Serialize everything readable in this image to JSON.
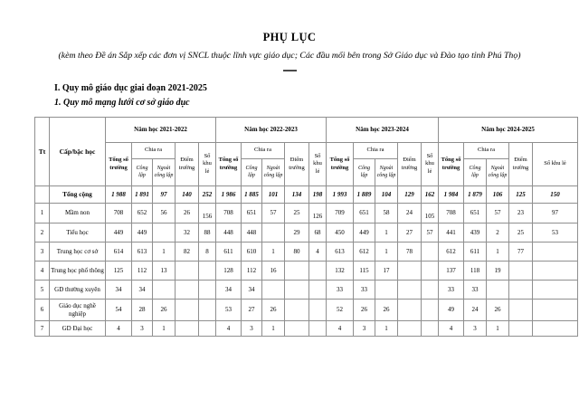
{
  "page": {
    "title": "PHỤ LỤC",
    "subtitle": "(kèm theo Đề án Sắp xếp các đơn vị SNCL thuộc lĩnh vực giáo dục; Các đầu mối bên trong Sở Giáo dục và Đào tạo tỉnh Phú Thọ)",
    "section_heading": "I. Quy mô giáo dục giai đoạn 2021-2025",
    "subsection_heading": "1. Quy mô mạng lưới cơ sở giáo dục"
  },
  "table": {
    "col_tt": "Tt",
    "col_level": "Cấp/bậc học",
    "year_groups": [
      "Năm học 2021-2022",
      "Năm học 2022-2023",
      "Năm học 2023-2024",
      "Năm học 2024-2025"
    ],
    "sub": {
      "total": "Tổng số trường",
      "chia_ra": "Chia ra",
      "cong_lap": "Công lập",
      "ngoai_cong_lap": "Ngoài công lập",
      "diem_truong": "Điểm trường",
      "so_khu_le": "Số khu lẻ"
    },
    "rows": [
      {
        "tt": "",
        "label": "Tổng cộng",
        "bold": true,
        "values": [
          "1 988",
          "1 891",
          "97",
          "140",
          "252",
          "1 986",
          "1 885",
          "101",
          "134",
          "198",
          "1 993",
          "1 889",
          "104",
          "129",
          "162",
          "1 984",
          "1 879",
          "106",
          "125",
          "150"
        ]
      },
      {
        "tt": "1",
        "label": "Mầm non",
        "values": [
          "708",
          "652",
          "56",
          "26",
          "156",
          "708",
          "651",
          "57",
          "25",
          "126",
          "709",
          "651",
          "58",
          "24",
          "105",
          "708",
          "651",
          "57",
          "23",
          "97"
        ]
      },
      {
        "tt": "2",
        "label": "Tiểu học",
        "values": [
          "449",
          "449",
          "",
          "32",
          "88",
          "448",
          "448",
          "",
          "29",
          "68",
          "450",
          "449",
          "1",
          "27",
          "57",
          "441",
          "439",
          "2",
          "25",
          "53"
        ]
      },
      {
        "tt": "3",
        "label": "Trung học cơ sở",
        "values": [
          "614",
          "613",
          "1",
          "82",
          "8",
          "611",
          "610",
          "1",
          "80",
          "4",
          "613",
          "612",
          "1",
          "78",
          "",
          "612",
          "611",
          "1",
          "77",
          ""
        ]
      },
      {
        "tt": "4",
        "label": "Trung học phổ thông",
        "values": [
          "125",
          "112",
          "13",
          "",
          "",
          "128",
          "112",
          "16",
          "",
          "",
          "132",
          "115",
          "17",
          "",
          "",
          "137",
          "118",
          "19",
          "",
          ""
        ]
      },
      {
        "tt": "5",
        "label": "GD thường xuyên",
        "values": [
          "34",
          "34",
          "",
          "",
          "",
          "34",
          "34",
          "",
          "",
          "",
          "33",
          "33",
          "",
          "",
          "",
          "33",
          "33",
          "",
          "",
          ""
        ]
      },
      {
        "tt": "6",
        "label": "Giáo dục nghề nghiệp",
        "values": [
          "54",
          "28",
          "26",
          "",
          "",
          "53",
          "27",
          "26",
          "",
          "",
          "52",
          "26",
          "26",
          "",
          "",
          "49",
          "24",
          "26",
          "",
          ""
        ]
      },
      {
        "tt": "7",
        "label": "GD Đại học",
        "values": [
          "4",
          "3",
          "1",
          "",
          "",
          "4",
          "3",
          "1",
          "",
          "",
          "4",
          "3",
          "1",
          "",
          "",
          "4",
          "3",
          "1",
          "",
          ""
        ]
      }
    ]
  }
}
